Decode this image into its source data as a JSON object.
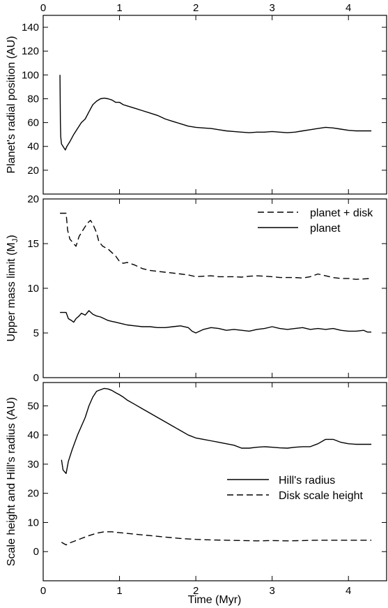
{
  "chart_data": [
    {
      "type": "line",
      "ylabel": "Planet's radial position (AU)",
      "xlim": [
        0,
        4.5
      ],
      "ylim": [
        0,
        150
      ],
      "xticks": [
        0,
        1,
        2,
        3,
        4
      ],
      "yticks": [
        20,
        40,
        60,
        80,
        100,
        120,
        140
      ],
      "top_axis_labels": true,
      "series": [
        {
          "style": "solid",
          "x": [
            0.22,
            0.225,
            0.23,
            0.24,
            0.26,
            0.29,
            0.31,
            0.35,
            0.4,
            0.45,
            0.5,
            0.55,
            0.6,
            0.65,
            0.7,
            0.75,
            0.8,
            0.85,
            0.9,
            0.95,
            1.0,
            1.05,
            1.1,
            1.2,
            1.3,
            1.4,
            1.5,
            1.6,
            1.7,
            1.8,
            1.9,
            2.0,
            2.1,
            2.2,
            2.3,
            2.4,
            2.5,
            2.6,
            2.7,
            2.8,
            2.9,
            3.0,
            3.1,
            3.2,
            3.3,
            3.4,
            3.5,
            3.6,
            3.7,
            3.8,
            3.9,
            4.0,
            4.1,
            4.2,
            4.3
          ],
          "values": [
            100,
            60,
            48,
            42,
            40,
            37,
            40,
            44,
            50,
            55,
            60,
            63,
            69,
            75,
            78,
            80,
            80.5,
            80,
            79,
            77,
            77,
            75,
            74,
            72,
            70,
            68,
            66,
            63,
            61,
            59,
            57,
            56,
            55.5,
            55,
            54,
            53,
            52.5,
            52,
            51.5,
            52,
            52,
            52.5,
            52,
            51.5,
            52,
            53,
            54,
            55,
            56,
            55.5,
            54.5,
            53.5,
            53,
            53,
            53
          ]
        }
      ]
    },
    {
      "type": "line",
      "ylabel": "Upper mass limit (M",
      "ylabel_sub": "J",
      "ylabel_close": ")",
      "xlim": [
        0,
        4.5
      ],
      "ylim": [
        0,
        20
      ],
      "xticks": [
        0,
        1,
        2,
        3,
        4
      ],
      "yticks": [
        0,
        5,
        10,
        15,
        20
      ],
      "legend": {
        "placement": "top-right"
      },
      "series": [
        {
          "name": "planet + disk",
          "style": "dashed",
          "x": [
            0.22,
            0.3,
            0.32,
            0.35,
            0.4,
            0.43,
            0.47,
            0.52,
            0.58,
            0.62,
            0.65,
            0.7,
            0.73,
            0.78,
            0.85,
            0.9,
            0.95,
            1.0,
            1.05,
            1.1,
            1.2,
            1.3,
            1.4,
            1.5,
            1.6,
            1.7,
            1.8,
            1.9,
            2.0,
            2.1,
            2.2,
            2.3,
            2.4,
            2.5,
            2.6,
            2.7,
            2.8,
            2.9,
            3.0,
            3.1,
            3.2,
            3.3,
            3.4,
            3.5,
            3.6,
            3.7,
            3.8,
            3.9,
            4.0,
            4.1,
            4.2,
            4.3
          ],
          "values": [
            18.4,
            18.4,
            16.5,
            15.5,
            15.0,
            14.7,
            15.8,
            16.5,
            17.3,
            17.6,
            17.2,
            16.2,
            15.2,
            14.7,
            14.4,
            14.0,
            13.6,
            13.0,
            12.8,
            12.9,
            12.6,
            12.2,
            12.0,
            11.9,
            11.8,
            11.7,
            11.6,
            11.5,
            11.3,
            11.35,
            11.4,
            11.3,
            11.3,
            11.3,
            11.25,
            11.35,
            11.4,
            11.35,
            11.3,
            11.2,
            11.2,
            11.2,
            11.15,
            11.3,
            11.6,
            11.4,
            11.2,
            11.1,
            11.1,
            11.0,
            11.05,
            11.1
          ]
        },
        {
          "name": "planet",
          "style": "solid",
          "x": [
            0.22,
            0.3,
            0.33,
            0.37,
            0.4,
            0.43,
            0.47,
            0.5,
            0.55,
            0.6,
            0.65,
            0.7,
            0.75,
            0.8,
            0.85,
            0.9,
            0.95,
            1.0,
            1.05,
            1.1,
            1.2,
            1.3,
            1.4,
            1.5,
            1.6,
            1.7,
            1.8,
            1.9,
            1.95,
            2.0,
            2.1,
            2.2,
            2.3,
            2.4,
            2.5,
            2.6,
            2.7,
            2.8,
            2.9,
            3.0,
            3.1,
            3.2,
            3.3,
            3.4,
            3.5,
            3.6,
            3.7,
            3.8,
            3.9,
            4.0,
            4.1,
            4.2,
            4.25,
            4.3
          ],
          "values": [
            7.3,
            7.3,
            6.6,
            6.4,
            6.2,
            6.6,
            6.9,
            7.2,
            7.0,
            7.5,
            7.1,
            6.9,
            6.8,
            6.6,
            6.4,
            6.3,
            6.2,
            6.1,
            6.0,
            5.9,
            5.8,
            5.7,
            5.7,
            5.6,
            5.6,
            5.7,
            5.8,
            5.6,
            5.2,
            5.0,
            5.4,
            5.6,
            5.5,
            5.3,
            5.4,
            5.3,
            5.2,
            5.4,
            5.5,
            5.7,
            5.5,
            5.4,
            5.5,
            5.6,
            5.4,
            5.5,
            5.4,
            5.5,
            5.3,
            5.2,
            5.2,
            5.3,
            5.1,
            5.1
          ]
        }
      ]
    },
    {
      "type": "line",
      "ylabel": "Scale height and Hill's radius (AU)",
      "xlabel": "Time (Myr)",
      "xlim": [
        0,
        4.5
      ],
      "ylim": [
        -10,
        58
      ],
      "xticks": [
        0,
        1,
        2,
        3,
        4
      ],
      "yticks": [
        0,
        10,
        20,
        30,
        40,
        50
      ],
      "legend": {
        "placement": "lower-right"
      },
      "series": [
        {
          "name": "Hill's radius",
          "style": "solid",
          "x": [
            0.24,
            0.26,
            0.3,
            0.33,
            0.38,
            0.45,
            0.5,
            0.55,
            0.6,
            0.65,
            0.7,
            0.75,
            0.8,
            0.85,
            0.9,
            0.95,
            1.0,
            1.05,
            1.1,
            1.2,
            1.3,
            1.4,
            1.5,
            1.6,
            1.7,
            1.8,
            1.9,
            2.0,
            2.1,
            2.2,
            2.3,
            2.4,
            2.5,
            2.6,
            2.7,
            2.8,
            2.9,
            3.0,
            3.1,
            3.2,
            3.3,
            3.4,
            3.5,
            3.6,
            3.7,
            3.8,
            3.9,
            4.0,
            4.1,
            4.2,
            4.3
          ],
          "values": [
            31.5,
            28,
            26.8,
            31,
            35,
            40,
            43,
            46,
            50,
            53,
            55,
            55.5,
            56,
            55.8,
            55.3,
            54.5,
            53.8,
            53,
            52,
            50.5,
            49,
            47.5,
            46,
            44.5,
            43,
            41.5,
            40,
            39,
            38.5,
            38,
            37.5,
            37,
            36.5,
            35.5,
            35.5,
            35.8,
            36,
            35.8,
            35.6,
            35.5,
            35.8,
            36,
            36,
            37,
            38.5,
            38.5,
            37.5,
            37,
            36.8,
            36.8,
            36.8
          ]
        },
        {
          "name": "Disk scale height",
          "style": "dashed",
          "x": [
            0.24,
            0.3,
            0.35,
            0.4,
            0.5,
            0.6,
            0.7,
            0.8,
            0.9,
            1.0,
            1.2,
            1.4,
            1.6,
            1.8,
            2.0,
            2.2,
            2.4,
            2.6,
            2.8,
            3.0,
            3.2,
            3.4,
            3.6,
            3.8,
            4.0,
            4.2,
            4.3
          ],
          "values": [
            3.2,
            2.3,
            3.0,
            3.5,
            4.5,
            5.5,
            6.3,
            6.8,
            6.8,
            6.5,
            6.0,
            5.5,
            5.0,
            4.5,
            4.2,
            4.0,
            3.9,
            3.8,
            3.7,
            3.8,
            3.7,
            3.8,
            3.9,
            3.9,
            3.9,
            3.9,
            3.9
          ]
        }
      ]
    }
  ]
}
